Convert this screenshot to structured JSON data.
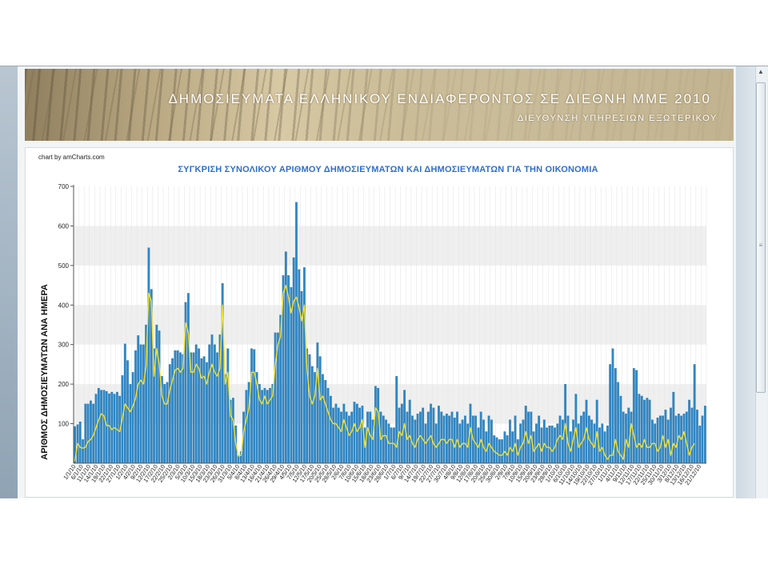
{
  "banner": {
    "title": "ΔΗΜΟΣΙΕΥΜΑΤΑ ΕΛΛΗΝΙΚΟΥ ΕΝΔΙΑΦΕΡΟΝΤΟΣ ΣΕ ΔΙΕΘΝΗ ΜΜΕ  2010",
    "subtitle": "ΔΙΕΥΘΥΝΣΗ ΥΠΗΡΕΣΙΩΝ ΕΞΩΤΕΡΙΚΟΥ"
  },
  "credit": "chart by amCharts.com",
  "colors": {
    "bar": "#2f86c4",
    "bar_edge": "#1f6da6",
    "line": "#f2e12b",
    "grid_band": "#efefef",
    "title": "#2e6fd1"
  },
  "chart_data": {
    "type": "bar",
    "title": "ΣΥΓΚΡΙΣΗ ΣΥΝΟΛΙΚΟΥ ΑΡΙΘΜΟΥ ΔΗΜΟΣΙΕΥΜΑΤΩΝ ΚΑΙ ΔΗΜΟΣΙΕΥΜΑΤΩΝ ΓΙΑ ΤΗΝ ΟΙΚΟΝΟΜΙΑ",
    "ylabel": "ΑΡΙΘΜΟΣ ΔΗΜΟΣΙΕΥΜΑΤΩΝ ΑΝΑ ΗΜΕΡΑ",
    "ylim": [
      0,
      700
    ],
    "yticks": [
      100,
      200,
      300,
      400,
      500,
      600,
      700
    ],
    "grid": "alternating-bands",
    "series": [
      {
        "values": [
          93,
          98,
          105,
          60,
          150,
          150,
          158,
          150,
          175,
          190,
          185,
          185,
          182,
          176,
          180,
          175,
          180,
          170,
          222,
          302,
          260,
          200,
          230,
          285,
          323,
          300,
          300,
          350,
          545,
          440,
          290,
          350,
          335,
          220,
          200,
          205,
          250,
          265,
          285,
          285,
          280,
          275,
          407,
          430,
          280,
          280,
          300,
          290,
          265,
          270,
          255,
          300,
          325,
          300,
          280,
          325,
          455,
          225,
          290,
          160,
          165,
          95,
          20,
          30,
          130,
          185,
          205,
          290,
          288,
          230,
          200,
          185,
          190,
          185,
          190,
          200,
          330,
          330,
          375,
          475,
          535,
          475,
          445,
          520,
          660,
          490,
          435,
          495,
          290,
          275,
          245,
          230,
          305,
          270,
          225,
          210,
          190,
          170,
          140,
          150,
          140,
          130,
          150,
          130,
          120,
          130,
          155,
          150,
          140,
          145,
          90,
          130,
          130,
          110,
          195,
          190,
          130,
          120,
          110,
          100,
          90,
          90,
          220,
          140,
          150,
          185,
          130,
          160,
          120,
          110,
          125,
          130,
          140,
          100,
          130,
          150,
          140,
          100,
          145,
          130,
          120,
          125,
          120,
          130,
          115,
          130,
          100,
          110,
          120,
          100,
          150,
          120,
          120,
          90,
          130,
          110,
          80,
          120,
          110,
          70,
          65,
          60,
          60,
          80,
          70,
          110,
          80,
          120,
          60,
          100,
          110,
          145,
          130,
          130,
          80,
          100,
          120,
          90,
          110,
          90,
          95,
          95,
          90,
          100,
          120,
          110,
          200,
          120,
          80,
          110,
          175,
          100,
          120,
          130,
          160,
          120,
          110,
          100,
          160,
          90,
          100,
          80,
          95,
          250,
          290,
          240,
          205,
          170,
          130,
          125,
          140,
          130,
          240,
          235,
          175,
          170,
          160,
          165,
          160,
          110,
          100,
          115,
          120,
          120,
          135,
          110,
          140,
          180,
          120,
          125,
          120,
          125,
          130,
          160,
          140,
          250,
          135,
          95,
          120,
          145
        ]
      },
      {
        "values": [
          5,
          50,
          40,
          38,
          40,
          55,
          60,
          70,
          90,
          110,
          125,
          120,
          95,
          95,
          85,
          90,
          85,
          80,
          115,
          150,
          140,
          130,
          145,
          165,
          200,
          210,
          200,
          245,
          430,
          410,
          220,
          290,
          250,
          170,
          150,
          150,
          185,
          210,
          235,
          240,
          230,
          240,
          355,
          330,
          230,
          230,
          250,
          240,
          215,
          220,
          200,
          230,
          250,
          230,
          220,
          240,
          400,
          200,
          230,
          120,
          110,
          50,
          18,
          20,
          80,
          110,
          140,
          230,
          230,
          200,
          160,
          150,
          170,
          150,
          160,
          170,
          250,
          300,
          320,
          430,
          450,
          420,
          380,
          410,
          420,
          395,
          360,
          400,
          240,
          170,
          150,
          170,
          240,
          160,
          170,
          150,
          130,
          110,
          100,
          100,
          90,
          80,
          110,
          90,
          70,
          80,
          100,
          80,
          90,
          110,
          40,
          90,
          70,
          60,
          140,
          130,
          60,
          70,
          70,
          50,
          50,
          50,
          40,
          80,
          70,
          100,
          60,
          70,
          50,
          40,
          60,
          70,
          60,
          50,
          60,
          70,
          50,
          40,
          50,
          60,
          60,
          50,
          60,
          60,
          40,
          60,
          40,
          50,
          50,
          40,
          90,
          60,
          50,
          40,
          60,
          40,
          30,
          50,
          40,
          30,
          25,
          20,
          20,
          30,
          20,
          40,
          30,
          50,
          20,
          40,
          50,
          80,
          50,
          70,
          30,
          40,
          50,
          30,
          50,
          40,
          40,
          30,
          40,
          60,
          70,
          60,
          100,
          50,
          30,
          60,
          90,
          40,
          50,
          60,
          90,
          60,
          50,
          40,
          80,
          30,
          40,
          20,
          10,
          20,
          20,
          60,
          30,
          20,
          10,
          60,
          40,
          100,
          70,
          40,
          50,
          40,
          60,
          40,
          40,
          50,
          50,
          30,
          40,
          70,
          40,
          60,
          20,
          50,
          40,
          70,
          60,
          80,
          50,
          20,
          40,
          50
        ]
      }
    ],
    "x_tick_labels": [
      "1/1/10",
      "6/1/10",
      "11/1/10",
      "14/1/10",
      "19/1/10",
      "22/1/10",
      "27/1/10",
      "1/2/10",
      "4/2/10",
      "9/2/10",
      "12/2/10",
      "17/2/10",
      "22/2/10",
      "25/2/10",
      "2/3/10",
      "5/3/10",
      "10/3/10",
      "15/3/10",
      "18/3/10",
      "23/3/10",
      "26/3/10",
      "31/3/10",
      "5/4/10",
      "8/4/10",
      "13/4/10",
      "16/4/10",
      "21/4/10",
      "26/4/10",
      "29/4/10",
      "4/5/10",
      "7/5/10",
      "12/5/10",
      "17/5/10",
      "20/5/10",
      "25/5/10",
      "28/5/10",
      "2/6/10",
      "7/6/10",
      "10/6/10",
      "15/6/10",
      "18/6/10",
      "23/6/10",
      "28/6/10",
      "1/7/10",
      "6/7/10",
      "9/7/10",
      "14/7/10",
      "19/7/10",
      "22/7/10",
      "27/7/10",
      "30/7/10",
      "4/8/10",
      "9/8/10",
      "12/8/10",
      "17/8/10",
      "20/8/10",
      "25/8/10",
      "30/8/10",
      "2/9/10",
      "7/9/10",
      "10/9/10",
      "15/9/10",
      "20/9/10",
      "23/9/10",
      "28/9/10",
      "1/10/10",
      "6/10/10",
      "11/10/10",
      "14/10/10",
      "19/10/10",
      "22/10/10",
      "27/10/10",
      "1/11/10",
      "4/11/10",
      "9/11/10",
      "12/11/10",
      "17/11/10",
      "22/11/10",
      "25/11/10",
      "30/11/10",
      "3/12/10",
      "8/12/10",
      "13/12/10",
      "16/12/10",
      "21/12/10"
    ]
  }
}
